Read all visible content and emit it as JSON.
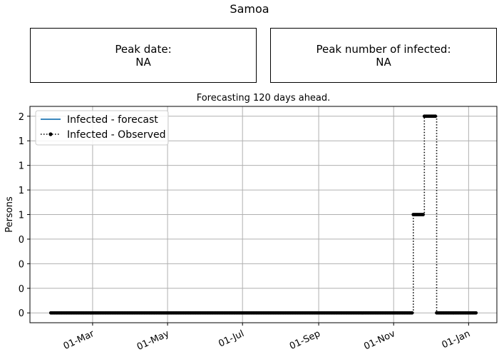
{
  "page": {
    "title": "Samoa"
  },
  "boxes": {
    "peak_date_label": "Peak date:",
    "peak_date_value": "NA",
    "peak_infected_label": "Peak number of infected:",
    "peak_infected_value": "NA"
  },
  "colors": {
    "forecast": "#1f77b4",
    "observed": "#000000",
    "grid": "#b0b0b0"
  },
  "chart_data": {
    "type": "line",
    "title": "Forecasting 120 days ahead.",
    "xlabel": "",
    "ylabel": "Persons",
    "grid": true,
    "legend_position": "top-left",
    "x_ticks": [
      "01-Mar",
      "01-May",
      "01-Jul",
      "01-Sep",
      "01-Nov",
      "01-Jan"
    ],
    "x_tick_dates": [
      "2020-03-01",
      "2020-05-01",
      "2020-07-01",
      "2020-09-01",
      "2020-11-01",
      "2021-01-01"
    ],
    "xlim": [
      "2020-01-10",
      "2021-01-24"
    ],
    "y_ticks": [
      0,
      0.25,
      0.5,
      0.75,
      1.0,
      1.25,
      1.5,
      1.75,
      2.0
    ],
    "y_tick_labels": [
      "0",
      "0",
      "0",
      "0",
      "1",
      "1",
      "1",
      "1",
      "2"
    ],
    "ylim": [
      -0.1,
      2.1
    ],
    "series": [
      {
        "name": "Infected - forecast",
        "style": "solid",
        "points": []
      },
      {
        "name": "Infected - Observed",
        "style": "dotted-marker",
        "points": [
          {
            "from": "2020-01-27",
            "to": "2020-11-16",
            "y": 0
          },
          {
            "from": "2020-11-17",
            "to": "2020-11-25",
            "y": 1
          },
          {
            "from": "2020-11-26",
            "to": "2020-12-05",
            "y": 2
          },
          {
            "from": "2020-12-06",
            "to": "2021-01-07",
            "y": 0
          }
        ]
      }
    ]
  }
}
